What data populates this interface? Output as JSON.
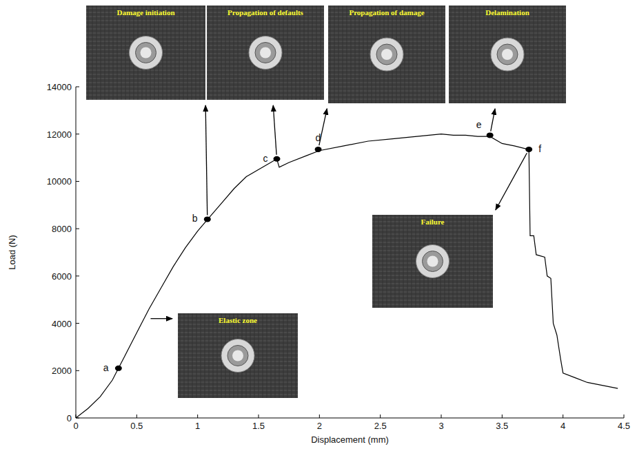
{
  "chart_data": {
    "type": "line",
    "x_label": "Displacement (mm)",
    "y_label": "Load (N)",
    "xlim": [
      0,
      4.5
    ],
    "ylim": [
      0,
      14000
    ],
    "xticks": [
      0,
      0.5,
      1,
      1.5,
      2,
      2.5,
      3,
      3.5,
      4,
      4.5
    ],
    "yticks": [
      0,
      2000,
      4000,
      6000,
      8000,
      10000,
      12000,
      14000
    ],
    "grid": false,
    "series": [
      {
        "color": "#000000",
        "x": [
          0,
          0.1,
          0.2,
          0.3,
          0.35,
          0.4,
          0.5,
          0.6,
          0.7,
          0.8,
          0.9,
          1.0,
          1.1,
          1.2,
          1.3,
          1.4,
          1.5,
          1.6,
          1.65,
          1.67,
          1.75,
          1.9,
          2.0,
          2.2,
          2.4,
          2.6,
          2.8,
          3.0,
          3.1,
          3.2,
          3.3,
          3.4,
          3.5,
          3.6,
          3.72,
          3.73,
          3.76,
          3.78,
          3.85,
          3.87,
          3.9,
          3.92,
          3.95,
          3.98,
          4.0,
          4.1,
          4.2,
          4.3,
          4.45
        ],
        "values": [
          0,
          400,
          900,
          1600,
          2100,
          2600,
          3600,
          4600,
          5500,
          6400,
          7200,
          7900,
          8500,
          9100,
          9700,
          10200,
          10500,
          10800,
          10950,
          10600,
          10800,
          11100,
          11300,
          11500,
          11700,
          11800,
          11900,
          12000,
          11950,
          11950,
          11900,
          11900,
          11600,
          11500,
          11350,
          7700,
          7700,
          6900,
          6800,
          6000,
          5900,
          4000,
          3500,
          2500,
          1900,
          1700,
          1500,
          1400,
          1250
        ]
      }
    ],
    "points": [
      {
        "label": "a",
        "x": 0.35,
        "y": 2100
      },
      {
        "label": "b",
        "x": 1.08,
        "y": 8400
      },
      {
        "label": "c",
        "x": 1.65,
        "y": 10950
      },
      {
        "label": "d",
        "x": 1.99,
        "y": 11350
      },
      {
        "label": "e",
        "x": 3.4,
        "y": 11950
      },
      {
        "label": "f",
        "x": 3.72,
        "y": 11350
      }
    ],
    "photos": [
      {
        "caption": "Elastic zone",
        "x": 0.58,
        "y": 4200
      },
      {
        "caption": "Damage initiation",
        "x": 1.08,
        "y": 8400
      },
      {
        "caption": "Propagation of defaults",
        "x": 1.65,
        "y": 10950
      },
      {
        "caption": "Propagation of damage",
        "x": 1.99,
        "y": 11350
      },
      {
        "caption": "Delamination",
        "x": 3.4,
        "y": 11950
      },
      {
        "caption": "Failure",
        "x": 3.72,
        "y": 11350
      }
    ]
  }
}
